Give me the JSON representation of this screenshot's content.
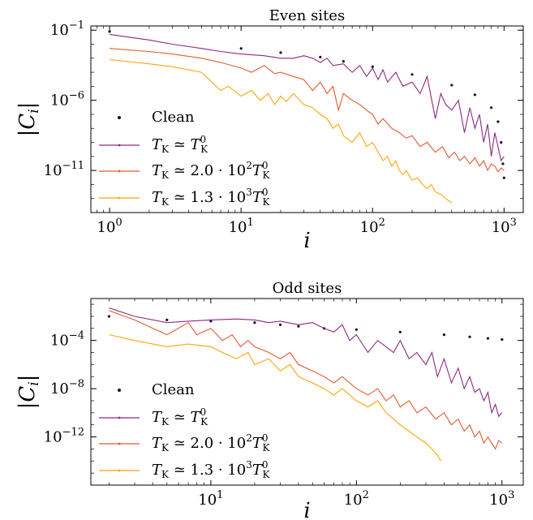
{
  "chart_data": [
    {
      "type": "line",
      "title": "Even sites",
      "xlabel": "i",
      "ylabel": "|C_i|",
      "xscale": "log",
      "yscale": "log",
      "xlim": [
        0.72,
        1400
      ],
      "ylim": [
        1e-14,
        0.2
      ],
      "xticks": [
        {
          "value": 1,
          "label": "10^0"
        },
        {
          "value": 10,
          "label": "10^1"
        },
        {
          "value": 100,
          "label": "10^2"
        },
        {
          "value": 1000,
          "label": "10^3"
        }
      ],
      "yticks": [
        {
          "value": 0.1,
          "label": "10^-1"
        },
        {
          "value": 1e-06,
          "label": "10^-6"
        },
        {
          "value": 1e-11,
          "label": "10^-11"
        }
      ],
      "legend_position": "lower-left",
      "series": [
        {
          "name": "Clean",
          "style": "dots",
          "color": "#1a0b3b",
          "x": [
            1,
            10,
            20,
            40,
            60,
            100,
            200,
            400,
            600,
            800,
            900,
            950,
            980,
            1000
          ],
          "y": [
            0.08,
            0.005,
            0.0025,
            0.0012,
            0.0006,
            0.00025,
            7e-05,
            1.2e-05,
            2.5e-06,
            3e-07,
            3e-08,
            1e-09,
            3e-11,
            3e-12
          ]
        },
        {
          "name": "T_K ≃ T_K^0",
          "style": "line",
          "color": "#8c2981",
          "x": [
            1,
            2,
            3,
            5,
            7,
            10,
            15,
            20,
            25,
            30,
            35,
            40,
            45,
            50,
            60,
            70,
            80,
            90,
            100,
            110,
            120,
            130,
            150,
            170,
            200,
            230,
            260,
            300,
            330,
            360,
            400,
            450,
            500,
            550,
            600,
            650,
            700,
            750,
            800,
            850,
            900,
            950,
            1000
          ],
          "y": [
            0.05,
            0.02,
            0.01,
            0.005,
            0.003,
            0.002,
            0.0015,
            0.001,
            0.001,
            0.0015,
            0.001,
            0.0005,
            0.001,
            0.0003,
            0.0004,
            0.0001,
            0.0003,
            5e-05,
            0.0002,
            3e-05,
            0.00015,
            2e-05,
            0.0001,
            1e-05,
            2e-05,
            3e-06,
            5e-05,
            5e-08,
            3e-06,
            5e-07,
            2e-07,
            1e-06,
            5e-09,
            3e-07,
            1e-08,
            1e-07,
            1e-09,
            2e-08,
            1e-10,
            5e-09,
            5e-10,
            5e-11,
            1e-10
          ]
        },
        {
          "name": "T_K ≃ 2.0 · 10^2 T_K^0",
          "style": "line",
          "color": "#e45a31",
          "x": [
            1,
            2,
            3,
            5,
            7,
            10,
            12,
            15,
            18,
            20,
            25,
            30,
            35,
            40,
            45,
            50,
            55,
            60,
            70,
            80,
            90,
            100,
            110,
            120,
            140,
            160,
            180,
            200,
            230,
            260,
            300,
            340,
            380,
            420,
            460,
            500,
            550,
            600,
            650,
            700,
            750,
            800,
            850,
            900,
            950,
            1000
          ],
          "y": [
            0.005,
            0.003,
            0.002,
            0.001,
            0.0005,
            0.0002,
            0.0001,
            0.0003,
            8e-05,
            0.0001,
            5e-05,
            3e-05,
            5e-06,
            2e-05,
            3e-06,
            1e-05,
            2e-07,
            3e-06,
            1e-06,
            5e-07,
            2e-07,
            1e-07,
            2e-08,
            5e-08,
            1e-08,
            5e-09,
            2e-09,
            3e-09,
            5e-10,
            1e-09,
            2e-10,
            5e-10,
            8e-11,
            2e-10,
            5e-11,
            1e-10,
            3e-11,
            8e-11,
            2e-11,
            5e-11,
            1e-11,
            3e-11,
            2e-11,
            8e-12,
            1.5e-11,
            1e-11
          ]
        },
        {
          "name": "T_K ≃ 1.3 · 10^3 T_K^0",
          "style": "line",
          "color": "#fca50a",
          "x": [
            1,
            2,
            3,
            5,
            7,
            8,
            10,
            12,
            14,
            16,
            18,
            20,
            22,
            25,
            28,
            30,
            35,
            40,
            45,
            50,
            55,
            60,
            70,
            80,
            90,
            100,
            110,
            120,
            130,
            140,
            150,
            160,
            170,
            180,
            200,
            220,
            240,
            260,
            280,
            300,
            330,
            360,
            400
          ],
          "y": [
            0.0008,
            0.0004,
            0.00025,
            0.0001,
            5e-06,
            1e-05,
            2e-06,
            5e-06,
            1e-06,
            3e-06,
            5e-07,
            2e-06,
            8e-07,
            3e-06,
            1e-06,
            5e-07,
            3e-07,
            1e-07,
            5e-08,
            1e-08,
            2e-08,
            3e-09,
            1e-09,
            5e-09,
            5e-10,
            1e-09,
            2e-10,
            5e-11,
            1e-10,
            2e-11,
            5e-11,
            1e-11,
            5e-12,
            1e-11,
            2e-12,
            3e-12,
            1e-12,
            5e-13,
            1e-12,
            3e-13,
            2e-13,
            1e-13,
            5e-14
          ]
        }
      ]
    },
    {
      "type": "line",
      "title": "Odd sites",
      "xlabel": "i",
      "ylabel": "|C_i|",
      "xscale": "log",
      "yscale": "log",
      "xlim": [
        1.5,
        1400
      ],
      "ylim": [
        1e-16,
        0.3
      ],
      "xticks": [
        {
          "value": 10,
          "label": "10^1"
        },
        {
          "value": 100,
          "label": "10^2"
        },
        {
          "value": 1000,
          "label": "10^3"
        }
      ],
      "yticks": [
        {
          "value": 0.0001,
          "label": "10^-4"
        },
        {
          "value": 1e-08,
          "label": "10^-8"
        },
        {
          "value": 1e-12,
          "label": "10^-12"
        }
      ],
      "legend_position": "lower-left",
      "series": [
        {
          "name": "Clean",
          "style": "dots",
          "color": "#1a0b3b",
          "x": [
            2,
            5,
            10,
            20,
            30,
            40,
            60,
            100,
            200,
            400,
            600,
            800,
            1000
          ],
          "y": [
            0.01,
            0.005,
            0.004,
            0.003,
            0.002,
            0.0015,
            0.001,
            0.0008,
            0.0005,
            0.0003,
            0.0002,
            0.00015,
            0.00012
          ]
        },
        {
          "name": "T_K ≃ T_K^0",
          "style": "line",
          "color": "#8c2981",
          "x": [
            2,
            3,
            5,
            7,
            10,
            15,
            20,
            25,
            30,
            40,
            50,
            60,
            70,
            80,
            90,
            100,
            120,
            140,
            160,
            180,
            200,
            230,
            260,
            300,
            330,
            360,
            400,
            450,
            500,
            550,
            600,
            650,
            700,
            750,
            800,
            850,
            900,
            950,
            1000
          ],
          "y": [
            0.05,
            0.01,
            0.003,
            0.004,
            0.005,
            0.006,
            0.005,
            0.003,
            0.004,
            0.002,
            0.003,
            0.001,
            0.0005,
            0.002,
            0.0001,
            0.0003,
            1e-05,
            0.0001,
            3e-05,
            1e-05,
            0.0001,
            3e-06,
            1e-05,
            1e-06,
            1e-05,
            1e-07,
            3e-06,
            3e-08,
            5e-07,
            1e-08,
            1e-07,
            5e-09,
            1e-08,
            1e-09,
            5e-09,
            1e-10,
            5e-10,
            5e-11,
            1e-10
          ]
        },
        {
          "name": "T_K ≃ 2.0 · 10^2 T_K^0",
          "style": "line",
          "color": "#e45a31",
          "x": [
            2,
            3,
            4,
            5,
            7,
            8,
            10,
            12,
            14,
            16,
            18,
            20,
            25,
            30,
            35,
            40,
            50,
            60,
            70,
            80,
            100,
            120,
            140,
            160,
            180,
            200,
            230,
            260,
            300,
            350,
            400,
            450,
            500,
            550,
            600,
            650,
            700,
            750,
            800,
            850,
            900,
            950,
            1000
          ],
          "y": [
            0.03,
            0.005,
            0.001,
            0.0003,
            0.003,
            0.0003,
            0.001,
            0.0001,
            0.0003,
            3e-05,
            0.0001,
            3e-05,
            1e-05,
            3e-06,
            1e-05,
            1e-06,
            3e-07,
            1e-07,
            3e-08,
            1e-07,
            1e-08,
            3e-09,
            1e-08,
            1e-09,
            3e-09,
            3e-10,
            1e-09,
            1e-10,
            3e-10,
            3e-11,
            1e-10,
            1e-11,
            3e-11,
            3e-12,
            1e-11,
            1e-12,
            3e-12,
            3e-13,
            1e-12,
            3e-13,
            1e-13,
            5e-13,
            3e-13
          ]
        },
        {
          "name": "T_K ≃ 1.3 · 10^3 T_K^0",
          "style": "line",
          "color": "#fca50a",
          "x": [
            2,
            3,
            5,
            7,
            10,
            12,
            15,
            18,
            20,
            25,
            30,
            35,
            40,
            50,
            60,
            70,
            80,
            100,
            120,
            140,
            160,
            180,
            200,
            230,
            260,
            300,
            330,
            360,
            380
          ],
          "y": [
            0.0003,
            0.0001,
            3e-05,
            5e-05,
            3e-05,
            1e-05,
            3e-06,
            1e-05,
            1e-06,
            3e-06,
            3e-07,
            1e-06,
            1e-07,
            3e-08,
            1e-08,
            3e-09,
            1e-08,
            1e-09,
            3e-10,
            1e-09,
            1e-10,
            3e-11,
            1e-11,
            3e-12,
            1e-12,
            3e-13,
            1e-13,
            3e-14,
            1e-14
          ]
        }
      ]
    }
  ],
  "legend": {
    "clean": "Clean",
    "tk_prefix": "T",
    "tk_sub": "K",
    "tk_rel": "≃",
    "tk0_sup": "0",
    "mult_2": "2.0 · 10",
    "exp_2": "2",
    "mult_3": "1.3 · 10",
    "exp_3": "3"
  }
}
